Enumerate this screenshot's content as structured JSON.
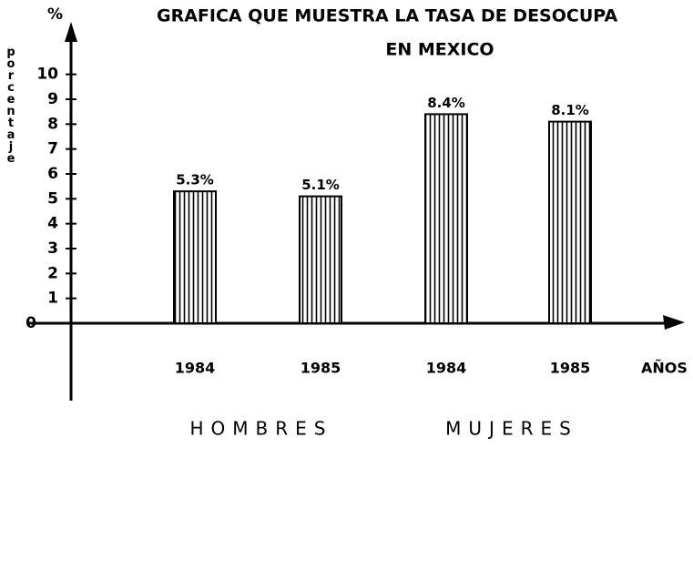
{
  "chart_data": {
    "type": "bar",
    "title": "GRAFICA QUE MUESTRA LA TASA DE DESOCUPA",
    "subtitle": "EN MEXICO",
    "y_unit": "%",
    "y_label": "porcentaje",
    "x_label": "AÑOS",
    "categories": [
      "1984",
      "1985",
      "1984",
      "1985"
    ],
    "values": [
      5.3,
      5.1,
      8.4,
      8.1
    ],
    "value_labels": [
      "5.3%",
      "5.1%",
      "8.4%",
      "8.1%"
    ],
    "group_labels": [
      "HOMBRES",
      "MUJERES"
    ],
    "color": "#000000",
    "ylim": [
      0,
      12
    ],
    "yticks": [
      0,
      1,
      2,
      3,
      4,
      5,
      6,
      7,
      8,
      9,
      10
    ]
  }
}
